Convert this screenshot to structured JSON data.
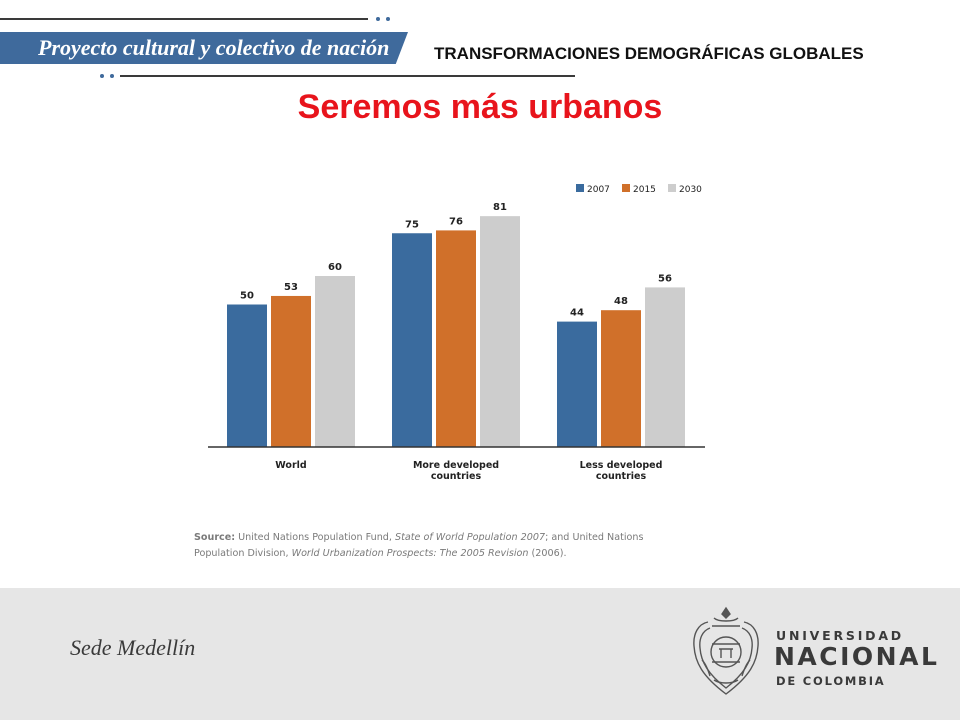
{
  "header": {
    "banner_text": "Proyecto cultural y colectivo de nación",
    "section_title": "TRANSFORMACIONES DEMOGRÁFICAS GLOBALES",
    "main_title": "Seremos más urbanos",
    "banner_color": "#3f6a9c",
    "title_color": "#e8141c"
  },
  "chart_data": {
    "type": "bar",
    "title": "",
    "xlabel": "",
    "ylabel": "",
    "categories": [
      [
        "World"
      ],
      [
        "More developed",
        "countries"
      ],
      [
        "Less developed",
        "countries"
      ]
    ],
    "series": [
      {
        "name": "2007",
        "color": "#3a6b9e",
        "values": [
          50,
          75,
          44
        ]
      },
      {
        "name": "2015",
        "color": "#d0702a",
        "values": [
          53,
          76,
          48
        ]
      },
      {
        "name": "2030",
        "color": "#cdcdcd",
        "values": [
          60,
          81,
          56
        ]
      }
    ],
    "ylim": [
      0,
      100
    ],
    "grid": false,
    "legend_position": "top-right",
    "data_labels": true
  },
  "source": {
    "label": "Source:",
    "line1_a": " United Nations Population Fund, ",
    "line1_b": "State of World Population 2007",
    "line1_c": "; and United Nations",
    "line2_a": "Population Division, ",
    "line2_b": "World Urbanization Prospects: The 2005 Revision",
    "line2_c": " (2006)."
  },
  "footer": {
    "sede": "Sede Medellín",
    "university_line1": "UNIVERSIDAD",
    "university_line2": "NACIONAL",
    "university_line3": "DE COLOMBIA"
  }
}
